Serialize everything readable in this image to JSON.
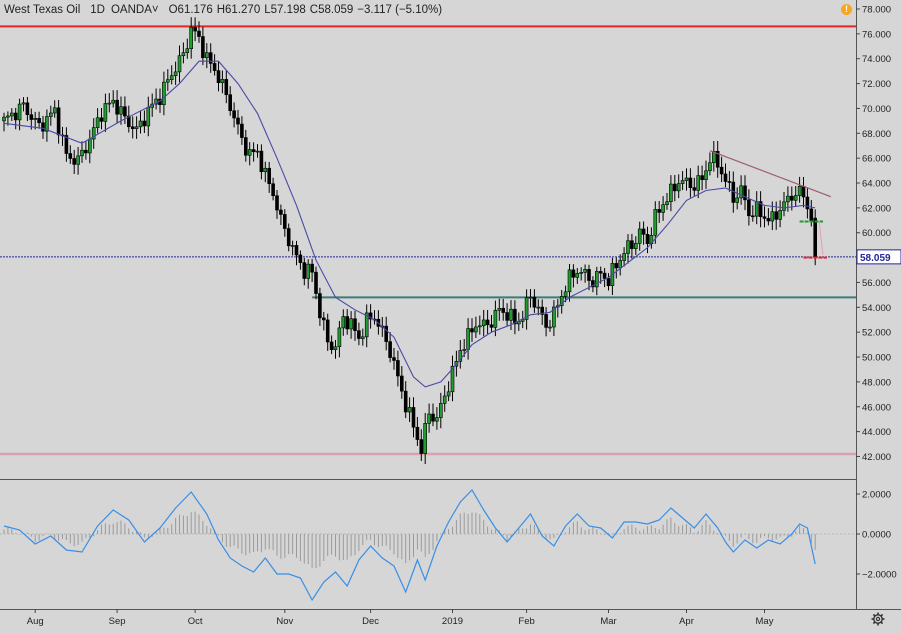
{
  "legend": {
    "symbol": "West Texas Oil",
    "timeframe": "1D",
    "source": "OANDA",
    "open": "O61.176",
    "high": "H61.270",
    "low": "L57.198",
    "close": "C58.059",
    "change": "−3.117 (−5.10%)"
  },
  "last_price_label": "58.059",
  "colors": {
    "background": "#d6d6d6",
    "up_candle": "#1f9d2e",
    "down_candle": "#000000",
    "ma_line": "#4a4aa8",
    "resistance_red": "#e3262b",
    "support_pink": "#d9a0b0",
    "teal_level": "#3f7a7a",
    "navy_level": "#24249a",
    "trendline": "#a05a70",
    "oscillator": "#3a8ee6",
    "histogram": "#9a9a9a",
    "alert": "#f5a623"
  },
  "icons": [
    "alert-icon",
    "settings-icon",
    "chevron-down-icon"
  ],
  "chart_data": {
    "type": "candlestick",
    "instrument": "West Texas Oil",
    "x_labels": [
      "Aug",
      "Sep",
      "Oct",
      "Nov",
      "Dec",
      "2019",
      "Feb",
      "Mar",
      "Apr",
      "May"
    ],
    "y_ticks": [
      "78.000",
      "76.000",
      "74.000",
      "72.000",
      "70.000",
      "68.000",
      "66.000",
      "64.000",
      "62.000",
      "60.000",
      "58.000",
      "56.000",
      "54.000",
      "52.000",
      "50.000",
      "48.000",
      "46.000",
      "44.000",
      "42.000"
    ],
    "ylim": [
      41.5,
      78.5
    ],
    "price_path": [
      [
        0,
        69.0
      ],
      [
        5,
        70.2
      ],
      [
        9,
        68.5
      ],
      [
        13,
        69.8
      ],
      [
        16,
        66.2
      ],
      [
        19,
        65.8
      ],
      [
        22,
        67.5
      ],
      [
        25,
        69.7
      ],
      [
        28,
        70.6
      ],
      [
        31,
        69.2
      ],
      [
        34,
        68.2
      ],
      [
        37,
        69.8
      ],
      [
        40,
        71.0
      ],
      [
        43,
        72.8
      ],
      [
        46,
        74.3
      ],
      [
        48,
        76.4
      ],
      [
        50,
        75.6
      ],
      [
        52,
        74.0
      ],
      [
        55,
        72.6
      ],
      [
        58,
        70.2
      ],
      [
        61,
        67.5
      ],
      [
        63,
        66.3
      ],
      [
        65,
        66.5
      ],
      [
        67,
        64.6
      ],
      [
        69,
        63.2
      ],
      [
        71,
        61.0
      ],
      [
        73,
        59.5
      ],
      [
        75,
        58.0
      ],
      [
        77,
        57.0
      ],
      [
        79,
        56.8
      ],
      [
        81,
        53.6
      ],
      [
        83,
        51.2
      ],
      [
        85,
        50.8
      ],
      [
        87,
        53.2
      ],
      [
        89,
        52.6
      ],
      [
        91,
        51.5
      ],
      [
        93,
        52.9
      ],
      [
        95,
        53.3
      ],
      [
        97,
        52.0
      ],
      [
        99,
        50.5
      ],
      [
        101,
        48.3
      ],
      [
        103,
        46.2
      ],
      [
        105,
        44.4
      ],
      [
        107,
        42.6
      ],
      [
        109,
        45.5
      ],
      [
        111,
        45.0
      ],
      [
        113,
        46.9
      ],
      [
        115,
        48.7
      ],
      [
        117,
        50.6
      ],
      [
        119,
        51.6
      ],
      [
        121,
        52.7
      ],
      [
        123,
        52.5
      ],
      [
        125,
        52.9
      ],
      [
        127,
        53.8
      ],
      [
        129,
        53.5
      ],
      [
        131,
        52.8
      ],
      [
        133,
        53.3
      ],
      [
        135,
        55.0
      ],
      [
        137,
        53.8
      ],
      [
        139,
        52.5
      ],
      [
        141,
        53.4
      ],
      [
        143,
        55.0
      ],
      [
        145,
        56.3
      ],
      [
        147,
        57.0
      ],
      [
        149,
        56.6
      ],
      [
        151,
        56.1
      ],
      [
        153,
        56.7
      ],
      [
        155,
        56.2
      ],
      [
        157,
        57.4
      ],
      [
        159,
        58.5
      ],
      [
        161,
        59.0
      ],
      [
        163,
        60.0
      ],
      [
        165,
        59.3
      ],
      [
        167,
        61.2
      ],
      [
        169,
        62.4
      ],
      [
        171,
        63.2
      ],
      [
        173,
        64.2
      ],
      [
        175,
        64.0
      ],
      [
        177,
        63.8
      ],
      [
        179,
        64.3
      ],
      [
        181,
        66.0
      ],
      [
        183,
        65.6
      ],
      [
        185,
        64.2
      ],
      [
        187,
        62.8
      ],
      [
        189,
        63.4
      ],
      [
        191,
        61.6
      ],
      [
        193,
        61.8
      ],
      [
        195,
        61.3
      ],
      [
        197,
        61.0
      ],
      [
        199,
        62.0
      ],
      [
        201,
        62.6
      ],
      [
        203,
        63.3
      ],
      [
        205,
        63.0
      ],
      [
        207,
        61.2
      ],
      [
        208,
        58.06
      ]
    ],
    "moving_average": [
      [
        0,
        68.8
      ],
      [
        10,
        68.4
      ],
      [
        20,
        67.2
      ],
      [
        30,
        69.0
      ],
      [
        40,
        70.6
      ],
      [
        45,
        72.0
      ],
      [
        50,
        73.8
      ],
      [
        55,
        73.8
      ],
      [
        60,
        72.0
      ],
      [
        65,
        69.6
      ],
      [
        70,
        66.0
      ],
      [
        75,
        62.2
      ],
      [
        80,
        57.8
      ],
      [
        85,
        54.8
      ],
      [
        90,
        53.8
      ],
      [
        95,
        53.0
      ],
      [
        100,
        51.6
      ],
      [
        105,
        48.4
      ],
      [
        108,
        47.6
      ],
      [
        112,
        48.0
      ],
      [
        116,
        49.4
      ],
      [
        120,
        51.0
      ],
      [
        125,
        52.0
      ],
      [
        130,
        52.6
      ],
      [
        135,
        53.4
      ],
      [
        140,
        53.6
      ],
      [
        145,
        54.8
      ],
      [
        150,
        55.6
      ],
      [
        155,
        56.4
      ],
      [
        160,
        57.6
      ],
      [
        165,
        58.8
      ],
      [
        170,
        60.6
      ],
      [
        175,
        62.6
      ],
      [
        180,
        63.4
      ],
      [
        185,
        63.6
      ],
      [
        190,
        62.9
      ],
      [
        195,
        62.2
      ],
      [
        200,
        62.0
      ],
      [
        205,
        62.2
      ],
      [
        208,
        62.0
      ]
    ],
    "levels": [
      {
        "name": "resistance",
        "value": 76.6
      },
      {
        "name": "support",
        "value": 42.2
      },
      {
        "name": "base",
        "value": 54.8
      },
      {
        "name": "last-price",
        "value": 58.059
      }
    ],
    "trendline": [
      [
        181,
        66.6
      ],
      [
        212,
        62.9
      ]
    ],
    "markers": [
      {
        "name": "green-target",
        "value": 60.9
      },
      {
        "name": "red-stop",
        "value": 58.0
      }
    ],
    "oscillator": {
      "y_ticks": [
        "2.0000",
        "0.0000",
        "−2.0000"
      ],
      "ylim": [
        -3.4,
        2.3
      ],
      "path": [
        [
          0,
          0.4
        ],
        [
          4,
          0.2
        ],
        [
          8,
          -0.5
        ],
        [
          12,
          -0.1
        ],
        [
          16,
          -0.8
        ],
        [
          20,
          -0.9
        ],
        [
          24,
          0.4
        ],
        [
          28,
          1.2
        ],
        [
          32,
          0.7
        ],
        [
          36,
          -0.4
        ],
        [
          40,
          0.3
        ],
        [
          44,
          1.3
        ],
        [
          48,
          2.1
        ],
        [
          52,
          1.0
        ],
        [
          55,
          -0.3
        ],
        [
          58,
          -1.2
        ],
        [
          61,
          -1.6
        ],
        [
          64,
          -1.9
        ],
        [
          67,
          -1.2
        ],
        [
          70,
          -2.0
        ],
        [
          73,
          -2.0
        ],
        [
          76,
          -2.2
        ],
        [
          79,
          -3.3
        ],
        [
          82,
          -2.4
        ],
        [
          85,
          -1.9
        ],
        [
          88,
          -2.6
        ],
        [
          91,
          -1.3
        ],
        [
          94,
          -0.6
        ],
        [
          97,
          -1.2
        ],
        [
          100,
          -1.6
        ],
        [
          103,
          -2.9
        ],
        [
          106,
          -1.3
        ],
        [
          108,
          -2.3
        ],
        [
          111,
          -0.6
        ],
        [
          114,
          0.6
        ],
        [
          117,
          1.6
        ],
        [
          120,
          2.2
        ],
        [
          123,
          1.2
        ],
        [
          126,
          0.3
        ],
        [
          129,
          -0.4
        ],
        [
          132,
          0.3
        ],
        [
          135,
          1.0
        ],
        [
          138,
          -0.1
        ],
        [
          141,
          -0.6
        ],
        [
          144,
          0.4
        ],
        [
          147,
          1.0
        ],
        [
          150,
          0.4
        ],
        [
          153,
          0.3
        ],
        [
          156,
          -0.2
        ],
        [
          159,
          0.6
        ],
        [
          162,
          0.6
        ],
        [
          165,
          0.5
        ],
        [
          168,
          0.7
        ],
        [
          171,
          1.3
        ],
        [
          174,
          0.8
        ],
        [
          177,
          0.3
        ],
        [
          180,
          1.0
        ],
        [
          183,
          0.3
        ],
        [
          185,
          -0.4
        ],
        [
          187,
          -0.9
        ],
        [
          190,
          -0.3
        ],
        [
          193,
          -0.7
        ],
        [
          196,
          -0.3
        ],
        [
          199,
          -0.5
        ],
        [
          202,
          0.0
        ],
        [
          204,
          0.5
        ],
        [
          206,
          0.3
        ],
        [
          208,
          -1.5
        ]
      ]
    }
  }
}
